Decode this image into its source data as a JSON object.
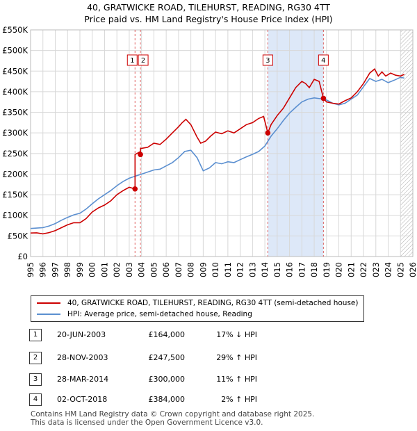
{
  "title": "40, GRATWICKE ROAD, TILEHURST, READING, RG30 4TT",
  "subtitle": "Price paid vs. HM Land Registry's House Price Index (HPI)",
  "colors": {
    "property": "#cc0000",
    "hpi": "#5b8fd0",
    "band": "#dde8f8",
    "grid": "#d8d8d8"
  },
  "chart_data": {
    "type": "line",
    "title": "Price paid vs. HM Land Registry's House Price Index (HPI)",
    "xlim": [
      1995,
      2026
    ],
    "ylim": [
      0,
      550000
    ],
    "yticks": [
      0,
      50000,
      100000,
      150000,
      200000,
      250000,
      300000,
      350000,
      400000,
      450000,
      500000,
      550000
    ],
    "ytick_labels": [
      "£0",
      "£50K",
      "£100K",
      "£150K",
      "£200K",
      "£250K",
      "£300K",
      "£350K",
      "£400K",
      "£450K",
      "£500K",
      "£550K"
    ],
    "xticks": [
      "1995",
      "1996",
      "1997",
      "1998",
      "1999",
      "2000",
      "2001",
      "2002",
      "2003",
      "2004",
      "2005",
      "2006",
      "2007",
      "2008",
      "2009",
      "2010",
      "2011",
      "2012",
      "2013",
      "2014",
      "2015",
      "2016",
      "2017",
      "2018",
      "2019",
      "2020",
      "2021",
      "2022",
      "2023",
      "2024",
      "2025",
      "2026"
    ],
    "future_hatch_from": 2025.0,
    "series": [
      {
        "name": "40, GRATWICKE ROAD, TILEHURST, READING, RG30 4TT (semi-detached house)",
        "color": "#cc0000",
        "x": [
          1995.0,
          1995.5,
          1996.0,
          1996.5,
          1997.0,
          1997.5,
          1998.0,
          1998.5,
          1999.0,
          1999.5,
          2000.0,
          2000.5,
          2001.0,
          2001.5,
          2002.0,
          2002.5,
          2003.0,
          2003.47,
          2003.47,
          2003.91,
          2003.91,
          2004.5,
          2005.0,
          2005.5,
          2006.0,
          2006.5,
          2007.0,
          2007.3,
          2007.6,
          2008.0,
          2008.5,
          2008.8,
          2009.2,
          2009.6,
          2010.0,
          2010.5,
          2011.0,
          2011.5,
          2012.0,
          2012.5,
          2013.0,
          2013.5,
          2013.9,
          2014.24,
          2014.24,
          2014.5,
          2015.0,
          2015.5,
          2016.0,
          2016.5,
          2017.0,
          2017.3,
          2017.6,
          2018.0,
          2018.4,
          2018.75,
          2018.75,
          2019.0,
          2019.5,
          2020.0,
          2020.5,
          2021.0,
          2021.5,
          2022.0,
          2022.5,
          2022.9,
          2023.2,
          2023.5,
          2023.8,
          2024.2,
          2024.6,
          2025.0,
          2025.3
        ],
        "values": [
          57000,
          57500,
          55000,
          58000,
          63000,
          70000,
          77000,
          82000,
          82000,
          92000,
          108000,
          118000,
          125000,
          135000,
          150000,
          160000,
          168000,
          164000,
          247500,
          255000,
          262000,
          265000,
          275000,
          272000,
          285000,
          300000,
          315000,
          325000,
          333000,
          320000,
          290000,
          275000,
          280000,
          292000,
          302000,
          298000,
          305000,
          300000,
          310000,
          320000,
          325000,
          335000,
          340000,
          300000,
          300000,
          320000,
          342000,
          360000,
          385000,
          410000,
          425000,
          420000,
          410000,
          430000,
          425000,
          384000,
          384000,
          375000,
          372000,
          370000,
          378000,
          385000,
          400000,
          420000,
          445000,
          455000,
          438000,
          448000,
          438000,
          445000,
          440000,
          438000,
          442000
        ]
      },
      {
        "name": "HPI: Average price, semi-detached house, Reading",
        "color": "#5b8fd0",
        "x": [
          1995.0,
          1995.5,
          1996.0,
          1996.5,
          1997.0,
          1997.5,
          1998.0,
          1998.5,
          1999.0,
          1999.5,
          2000.0,
          2000.5,
          2001.0,
          2001.5,
          2002.0,
          2002.5,
          2003.0,
          2003.5,
          2004.0,
          2004.5,
          2005.0,
          2005.5,
          2006.0,
          2006.5,
          2007.0,
          2007.5,
          2008.0,
          2008.5,
          2009.0,
          2009.5,
          2010.0,
          2010.5,
          2011.0,
          2011.5,
          2012.0,
          2012.5,
          2013.0,
          2013.5,
          2014.0,
          2014.5,
          2015.0,
          2015.5,
          2016.0,
          2016.5,
          2017.0,
          2017.5,
          2018.0,
          2018.5,
          2019.0,
          2019.5,
          2020.0,
          2020.5,
          2021.0,
          2021.5,
          2022.0,
          2022.5,
          2023.0,
          2023.5,
          2024.0,
          2024.5,
          2025.0,
          2025.3
        ],
        "values": [
          68000,
          69000,
          70000,
          74000,
          80000,
          88000,
          95000,
          101000,
          105000,
          115000,
          128000,
          140000,
          150000,
          160000,
          172000,
          182000,
          190000,
          195000,
          200000,
          205000,
          210000,
          212000,
          220000,
          228000,
          240000,
          255000,
          258000,
          240000,
          208000,
          215000,
          228000,
          225000,
          230000,
          228000,
          235000,
          242000,
          248000,
          255000,
          268000,
          292000,
          310000,
          330000,
          348000,
          362000,
          375000,
          382000,
          385000,
          383000,
          380000,
          372000,
          368000,
          372000,
          382000,
          392000,
          412000,
          432000,
          425000,
          430000,
          422000,
          428000,
          435000,
          433000
        ]
      }
    ],
    "sales": [
      {
        "label": "1",
        "x": 2003.47,
        "value": 164000
      },
      {
        "label": "2",
        "x": 2003.91,
        "value": 247500
      },
      {
        "label": "3",
        "x": 2014.24,
        "value": 300000
      },
      {
        "label": "4",
        "x": 2018.75,
        "value": 384000
      }
    ],
    "highlight_band": [
      2014.24,
      2018.75
    ]
  },
  "legend": {
    "property": "40, GRATWICKE ROAD, TILEHURST, READING, RG30 4TT (semi-detached house)",
    "hpi": "HPI: Average price, semi-detached house, Reading"
  },
  "sales_table": [
    {
      "num": "1",
      "date": "20-JUN-2003",
      "price": "£164,000",
      "hpi": "17% ↓ HPI"
    },
    {
      "num": "2",
      "date": "28-NOV-2003",
      "price": "£247,500",
      "hpi": "29% ↑ HPI"
    },
    {
      "num": "3",
      "date": "28-MAR-2014",
      "price": "£300,000",
      "hpi": "11% ↑ HPI"
    },
    {
      "num": "4",
      "date": "02-OCT-2018",
      "price": "£384,000",
      "hpi": "2% ↑ HPI"
    }
  ],
  "footer": {
    "line1": "Contains HM Land Registry data © Crown copyright and database right 2025.",
    "line2": "This data is licensed under the Open Government Licence v3.0."
  }
}
